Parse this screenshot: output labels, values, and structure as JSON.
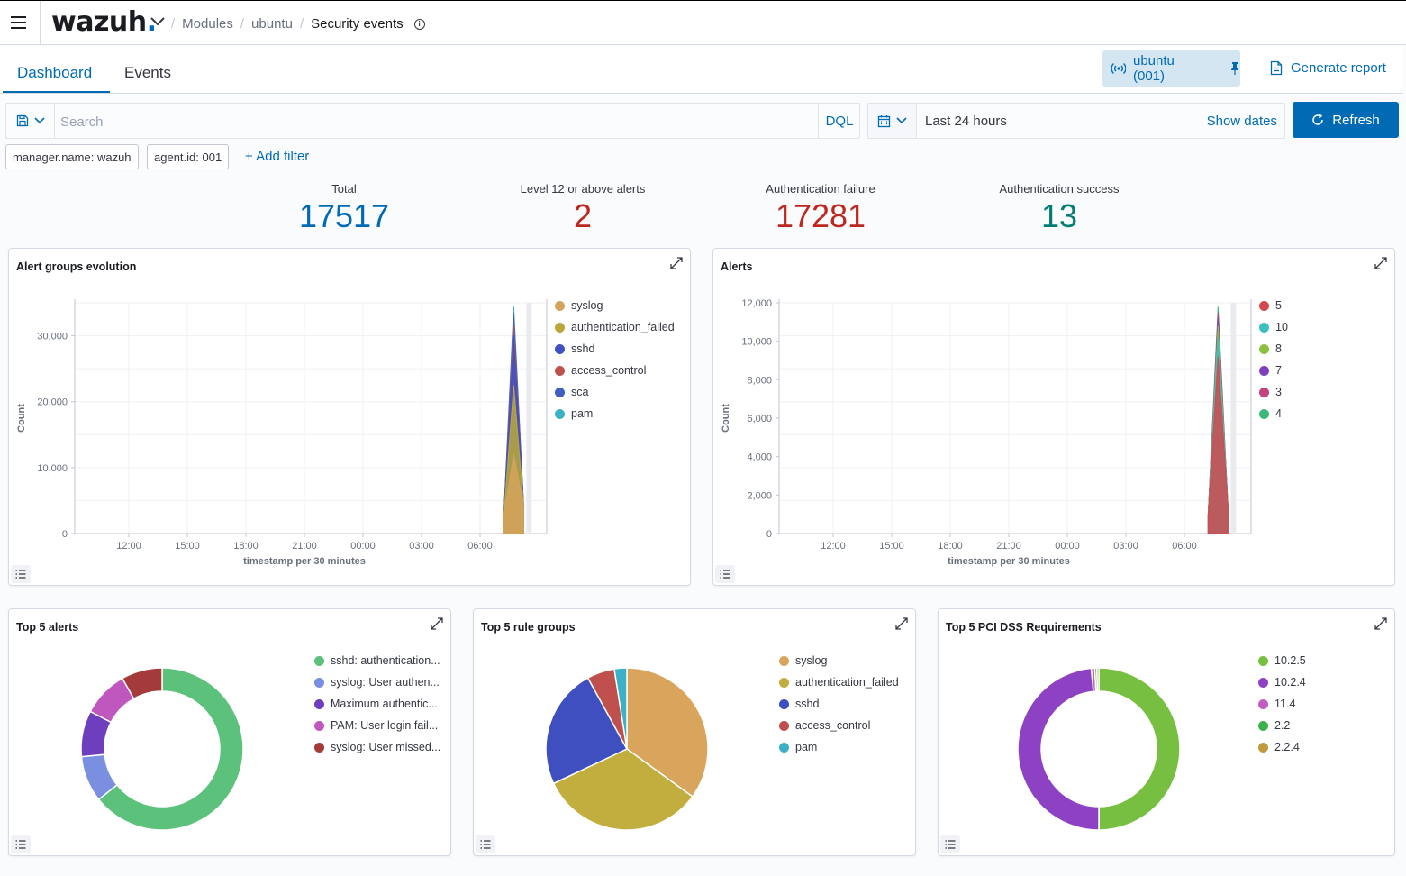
{
  "header": {
    "logo_text": "wazuh",
    "logo_dot": ".",
    "breadcrumb": [
      "Modules",
      "ubuntu",
      "Security events"
    ]
  },
  "tabs": [
    {
      "label": "Dashboard",
      "active": true
    },
    {
      "label": "Events",
      "active": false
    }
  ],
  "agent_pill": {
    "label": "ubuntu (001)"
  },
  "generate_report_label": "Generate report",
  "search": {
    "placeholder": "Search",
    "language": "DQL"
  },
  "date": {
    "range": "Last 24 hours",
    "show_dates": "Show dates"
  },
  "refresh_label": "Refresh",
  "filters": [
    "manager.name: wazuh",
    "agent.id: 001"
  ],
  "add_filter_label": "+ Add filter",
  "metrics": [
    {
      "label": "Total",
      "value": "17517",
      "color": "#006bb4"
    },
    {
      "label": "Level 12 or above alerts",
      "value": "2",
      "color": "#bd271e"
    },
    {
      "label": "Authentication failure",
      "value": "17281",
      "color": "#bd271e"
    },
    {
      "label": "Authentication success",
      "value": "13",
      "color": "#017d73"
    }
  ],
  "panels": {
    "alert_groups": {
      "title": "Alert groups evolution"
    },
    "alerts": {
      "title": "Alerts"
    },
    "top5_alerts": {
      "title": "Top 5 alerts"
    },
    "top5_rule_groups": {
      "title": "Top 5 rule groups"
    },
    "top5_pci": {
      "title": "Top 5 PCI DSS Requirements"
    }
  },
  "chart_data": [
    {
      "id": "alert_groups",
      "type": "area",
      "title": "Alert groups evolution",
      "xlabel": "timestamp per 30 minutes",
      "ylabel": "Count",
      "x_ticks": [
        "12:00",
        "15:00",
        "18:00",
        "21:00",
        "00:00",
        "03:00",
        "06:00"
      ],
      "y_ticks": [
        0,
        10000,
        20000,
        30000
      ],
      "y_tick_labels": [
        "0",
        "10,000",
        "20,000",
        "30,000"
      ],
      "ylim": [
        0,
        35000
      ],
      "grid": true,
      "legend_position": "right",
      "peak_time": "08:00",
      "series": [
        {
          "name": "syslog",
          "color": "#d6a35c",
          "peak": 12000
        },
        {
          "name": "authentication_failed",
          "color": "#b9a83a",
          "peak": 22500
        },
        {
          "name": "sshd",
          "color": "#4150c3",
          "peak": 30000
        },
        {
          "name": "access_control",
          "color": "#c0504d",
          "peak": 31500
        },
        {
          "name": "sca",
          "color": "#3f5fbf",
          "peak": 33500
        },
        {
          "name": "pam",
          "color": "#3cb1c5",
          "peak": 34500
        }
      ]
    },
    {
      "id": "alerts",
      "type": "area",
      "title": "Alerts",
      "xlabel": "timestamp per 30 minutes",
      "ylabel": "Count",
      "x_ticks": [
        "12:00",
        "15:00",
        "18:00",
        "21:00",
        "00:00",
        "03:00",
        "06:00"
      ],
      "y_ticks": [
        0,
        2000,
        4000,
        6000,
        8000,
        10000,
        12000
      ],
      "y_tick_labels": [
        "0",
        "2,000",
        "4,000",
        "6,000",
        "8,000",
        "10,000",
        "12,000"
      ],
      "ylim": [
        0,
        12000
      ],
      "grid": true,
      "legend_position": "right",
      "peak_time": "08:00",
      "series": [
        {
          "name": "5",
          "color": "#d04a4f",
          "peak": 9200
        },
        {
          "name": "10",
          "color": "#3cbfbf",
          "peak": 10200
        },
        {
          "name": "8",
          "color": "#8dbf40",
          "peak": 10800
        },
        {
          "name": "7",
          "color": "#7e3fc0",
          "peak": 11200
        },
        {
          "name": "3",
          "color": "#c6427a",
          "peak": 11500
        },
        {
          "name": "4",
          "color": "#3cb87a",
          "peak": 11800
        }
      ]
    },
    {
      "id": "top5_alerts",
      "type": "pie",
      "donut": true,
      "title": "Top 5 alerts",
      "legend_position": "right",
      "slices": [
        {
          "label": "sshd: authentication...",
          "value": 63,
          "color": "#5bc17b"
        },
        {
          "label": "syslog: User authen...",
          "value": 9,
          "color": "#7a8fdf"
        },
        {
          "label": "Maximum authentic...",
          "value": 9,
          "color": "#6d3fbf"
        },
        {
          "label": "PAM: User login fail...",
          "value": 9,
          "color": "#bf57bf"
        },
        {
          "label": "syslog: User missed...",
          "value": 8,
          "color": "#a43a3a"
        }
      ]
    },
    {
      "id": "top5_rule_groups",
      "type": "pie",
      "donut": false,
      "title": "Top 5 rule groups",
      "legend_position": "right",
      "slices": [
        {
          "label": "syslog",
          "value": 35,
          "color": "#d9a55c"
        },
        {
          "label": "authentication_failed",
          "value": 33,
          "color": "#c2ae3f"
        },
        {
          "label": "sshd",
          "value": 24,
          "color": "#3f4fbf"
        },
        {
          "label": "access_control",
          "value": 5.5,
          "color": "#c0504d"
        },
        {
          "label": "pam",
          "value": 2.5,
          "color": "#3cb1c5"
        }
      ]
    },
    {
      "id": "top5_pci",
      "type": "pie",
      "donut": true,
      "title": "Top 5 PCI DSS Requirements",
      "legend_position": "right",
      "slices": [
        {
          "label": "10.2.5",
          "value": 50,
          "color": "#76bf40"
        },
        {
          "label": "10.2.4",
          "value": 48.5,
          "color": "#8d42c3"
        },
        {
          "label": "11.4",
          "value": 0.7,
          "color": "#c05fbf"
        },
        {
          "label": "2.2",
          "value": 0.4,
          "color": "#3cb14a"
        },
        {
          "label": "2.2.4",
          "value": 0.4,
          "color": "#c09a3c"
        }
      ]
    }
  ]
}
